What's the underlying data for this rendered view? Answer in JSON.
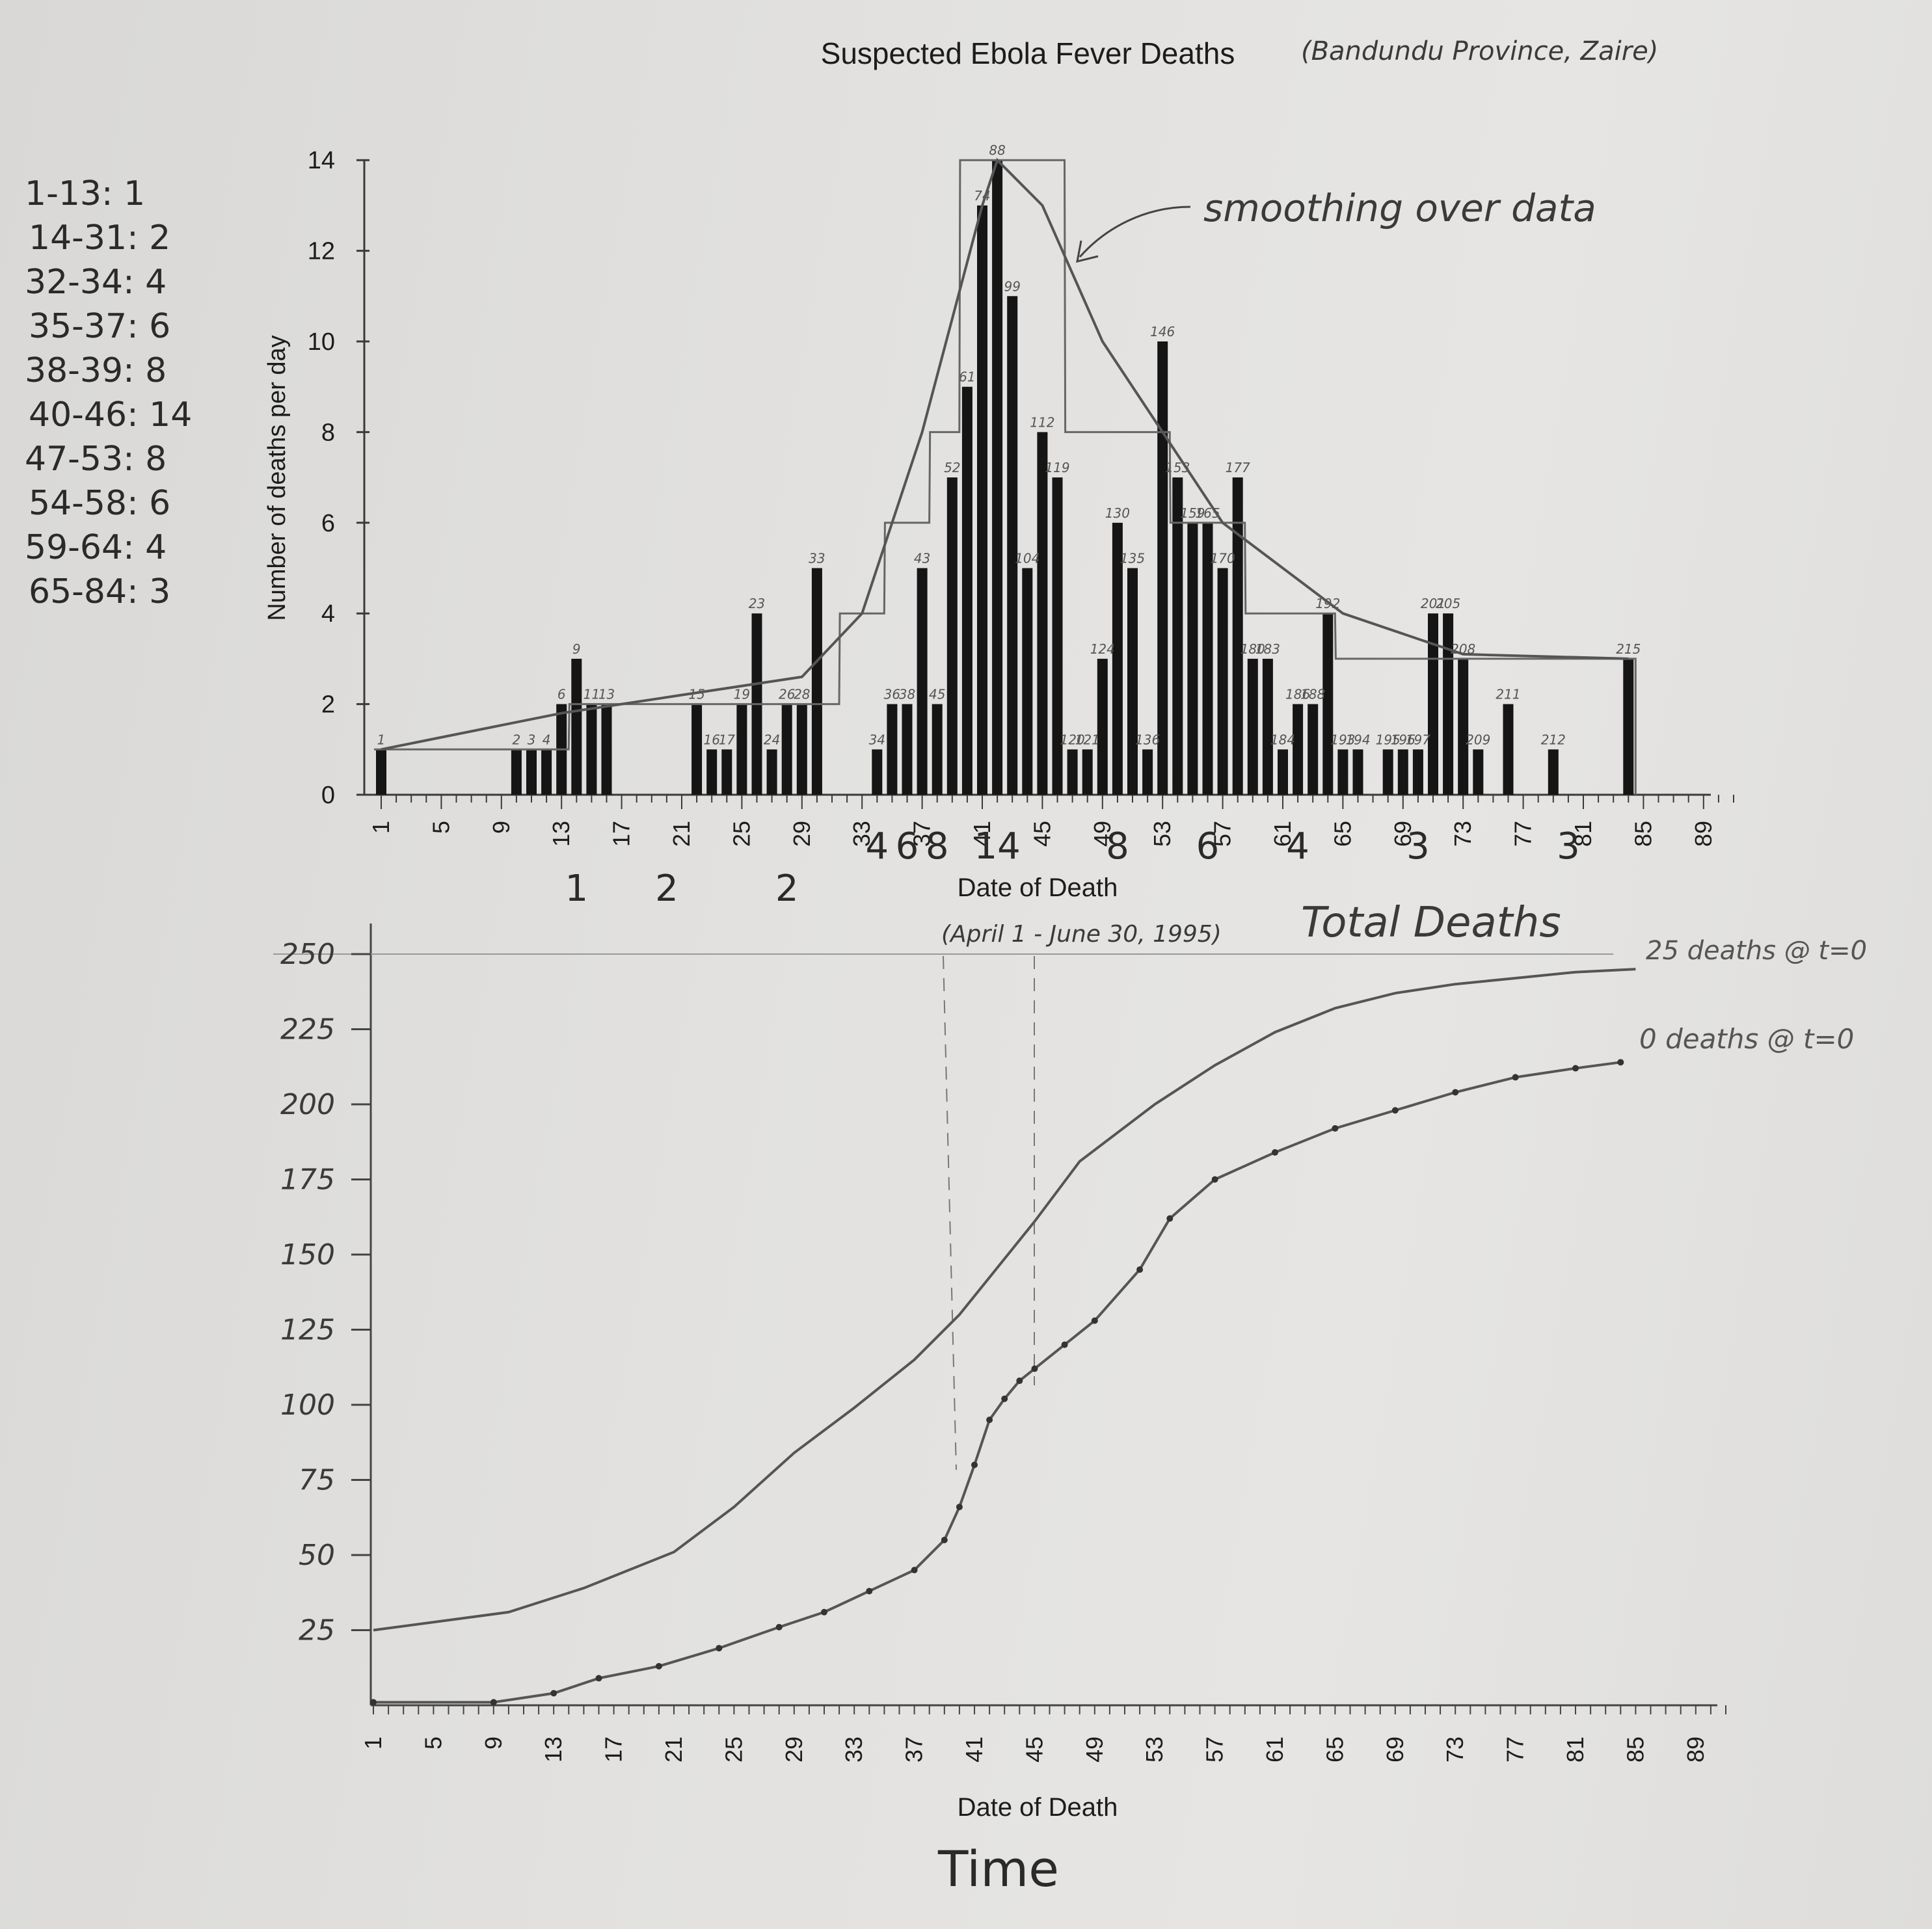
{
  "title": "Suspected Ebola Fever Deaths",
  "title_note": "(Bandundu Province, Zaire)",
  "annotations": {
    "smoothing": "smoothing over data",
    "date_range": "(April 1 - June 30, 1995)",
    "total_deaths": "Total Deaths",
    "curve_25": "25 deaths @ t=0",
    "curve_0": "0 deaths @ t=0",
    "time": "Time"
  },
  "margin_notes": [
    "1-13: 1",
    "14-31: 2",
    "32-34: 4",
    "35-37: 6",
    "38-39: 8",
    "40-46: 14",
    "47-53: 8",
    "54-58: 6",
    "59-64: 4",
    "65-84: 3"
  ],
  "group_labels": [
    "1",
    "2",
    "2",
    "4",
    "6",
    "8",
    "14",
    "8",
    "6",
    "4",
    "3",
    "3"
  ],
  "chart_data": [
    {
      "type": "bar",
      "title": "Suspected Ebola Fever Deaths",
      "xlabel": "Date of Death",
      "ylabel": "Number of deaths per day",
      "xlim": [
        1,
        91
      ],
      "ylim": [
        0,
        14
      ],
      "x_ticks": [
        1,
        5,
        9,
        13,
        17,
        21,
        25,
        29,
        33,
        37,
        41,
        45,
        49,
        53,
        57,
        61,
        65,
        69,
        73,
        77,
        81,
        85,
        89
      ],
      "y_ticks": [
        0,
        2,
        4,
        6,
        8,
        10,
        12,
        14
      ],
      "grid": false,
      "series": [
        {
          "x": [
            1,
            10,
            11,
            12,
            13,
            14,
            15,
            16,
            22,
            23,
            24,
            25,
            26,
            27,
            28,
            29,
            30,
            34,
            35,
            36,
            37,
            38,
            39,
            40,
            41,
            42,
            43,
            44,
            45,
            46,
            47,
            48,
            49,
            50,
            51,
            52,
            53,
            54,
            55,
            56,
            57,
            58,
            59,
            60,
            61,
            62,
            63,
            64,
            65,
            66,
            68,
            69,
            70,
            71,
            72,
            73,
            74,
            76,
            79,
            84
          ],
          "values": [
            1,
            1,
            1,
            1,
            2,
            3,
            2,
            2,
            2,
            1,
            1,
            2,
            4,
            1,
            2,
            2,
            5,
            1,
            2,
            2,
            5,
            2,
            7,
            9,
            13,
            14,
            11,
            5,
            8,
            7,
            1,
            1,
            3,
            6,
            5,
            1,
            10,
            7,
            6,
            6,
            5,
            7,
            3,
            3,
            1,
            2,
            2,
            4,
            1,
            1,
            1,
            1,
            1,
            4,
            4,
            3,
            1,
            2,
            1,
            3
          ],
          "cumulative_labels": [
            "1",
            "2",
            "3",
            "4",
            "6",
            "9",
            "11",
            "13",
            "15",
            "16",
            "17",
            "19",
            "23",
            "24",
            "26",
            "28",
            "33",
            "34",
            "36",
            "38",
            "43",
            "45",
            "52",
            "61",
            "74",
            "88",
            "99",
            "104",
            "112",
            "119",
            "120",
            "121",
            "124",
            "130",
            "135",
            "136",
            "146",
            "153",
            "159",
            "165",
            "170",
            "177",
            "180",
            "183",
            "184",
            "186",
            "188",
            "192",
            "193",
            "194",
            "195",
            "196",
            "197",
            "201",
            "205",
            "208",
            "209",
            "211",
            "212",
            "215"
          ]
        }
      ],
      "smoothing_curve": {
        "x": [
          1,
          13,
          21,
          29,
          33,
          37,
          41,
          42,
          45,
          49,
          53,
          57,
          65,
          73,
          84
        ],
        "y": [
          1,
          1.8,
          2.2,
          2.6,
          4,
          8,
          13,
          14,
          13,
          10,
          8,
          6,
          4,
          3.1,
          3
        ]
      },
      "step_average": {
        "x_ranges": [
          [
            1,
            13
          ],
          [
            14,
            31
          ],
          [
            32,
            34
          ],
          [
            35,
            37
          ],
          [
            38,
            39
          ],
          [
            40,
            46
          ],
          [
            47,
            53
          ],
          [
            54,
            58
          ],
          [
            59,
            64
          ],
          [
            65,
            84
          ]
        ],
        "values": [
          1,
          2,
          4,
          6,
          8,
          14,
          8,
          6,
          4,
          3
        ]
      }
    },
    {
      "type": "line",
      "title": "Total Deaths",
      "xlabel": "Date of Death",
      "ylabel": "",
      "xlim": [
        1,
        91
      ],
      "ylim": [
        0,
        250
      ],
      "x_ticks": [
        1,
        5,
        9,
        13,
        17,
        21,
        25,
        29,
        33,
        37,
        41,
        45,
        49,
        53,
        57,
        61,
        65,
        69,
        73,
        77,
        81,
        85,
        89
      ],
      "y_ticks": [
        25,
        50,
        75,
        100,
        125,
        150,
        175,
        200,
        225,
        250
      ],
      "series": [
        {
          "name": "25 deaths @ t=0",
          "x": [
            1,
            10,
            15,
            21,
            25,
            29,
            33,
            37,
            40,
            45,
            48,
            53,
            57,
            61,
            65,
            69,
            73,
            77,
            81,
            85
          ],
          "y": [
            25,
            31,
            39,
            51,
            66,
            84,
            99,
            115,
            130,
            161,
            181,
            200,
            213,
            224,
            232,
            237,
            240,
            242,
            244,
            245
          ]
        },
        {
          "name": "0 deaths @ t=0",
          "x": [
            1,
            9,
            13,
            16,
            20,
            24,
            28,
            31,
            34,
            37,
            39,
            40,
            41,
            42,
            43,
            44,
            45,
            47,
            49,
            52,
            54,
            57,
            61,
            65,
            69,
            73,
            77,
            81,
            84
          ],
          "y": [
            1,
            1,
            4,
            9,
            13,
            19,
            26,
            31,
            38,
            45,
            55,
            66,
            80,
            95,
            102,
            108,
            112,
            120,
            128,
            145,
            162,
            175,
            184,
            192,
            198,
            204,
            209,
            212,
            214
          ]
        }
      ]
    }
  ]
}
